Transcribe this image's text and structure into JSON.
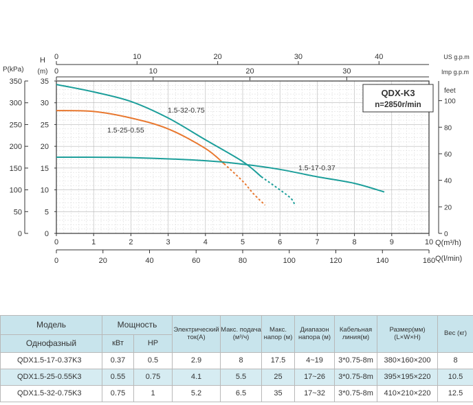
{
  "chart_data": {
    "type": "line",
    "model_title": "QDX-K3",
    "speed": "n=2850r/min",
    "axes": {
      "top_usgpm": {
        "label": "US g.p.m",
        "ticks": [
          "0",
          "10",
          "20",
          "30",
          "40"
        ],
        "max": 46.2
      },
      "top_impgpm": {
        "label": "Imp g.p.m",
        "ticks": [
          "0",
          "10",
          "20",
          "30"
        ],
        "max": 38.5
      },
      "bottom_m3h": {
        "label": "Q(m³/h)",
        "ticks": [
          "0",
          "1",
          "2",
          "3",
          "4",
          "5",
          "6",
          "7",
          "8",
          "9",
          "10"
        ],
        "min": 0,
        "max": 10
      },
      "bottom_lmin": {
        "label": "Q(l/min)",
        "ticks": [
          "0",
          "20",
          "40",
          "60",
          "80",
          "100",
          "120",
          "140",
          "160"
        ],
        "min": 0,
        "max": 160
      },
      "left_kpa": {
        "label": "P(kPa)",
        "ticks": [
          "0",
          "50",
          "100",
          "150",
          "200",
          "250",
          "300",
          "350"
        ],
        "max": 350
      },
      "left_m": {
        "label_h": "H",
        "label_unit": "(m)",
        "ticks": [
          "0",
          "5",
          "10",
          "15",
          "20",
          "25",
          "30",
          "35"
        ],
        "min": 0,
        "max": 35
      },
      "right_feet": {
        "label": "feet",
        "ticks": [
          "0",
          "20",
          "40",
          "60",
          "80",
          "100"
        ],
        "max": 114.8
      }
    },
    "grid": true,
    "series": [
      {
        "name": "1.5-32-0.75",
        "color": "#1b9e9a",
        "x": [
          0,
          1,
          2,
          3,
          4,
          5,
          5.5
        ],
        "y": [
          34.2,
          32.5,
          30.3,
          26.5,
          21.5,
          16.5,
          13.0
        ],
        "dashed_x": [
          5.5,
          6.0,
          6.3,
          6.4
        ],
        "dashed_y": [
          13.0,
          10.0,
          8.0,
          6.5
        ]
      },
      {
        "name": "1.5-25-0.55",
        "color": "#e8772e",
        "x": [
          0,
          1,
          2,
          3,
          4,
          4.5
        ],
        "y": [
          28.2,
          28.0,
          26.5,
          24.0,
          19.5,
          16.0
        ],
        "dashed_x": [
          4.5,
          5.0,
          5.3,
          5.6
        ],
        "dashed_y": [
          16.0,
          12.0,
          9.0,
          6.5
        ]
      },
      {
        "name": "1.5-17-0.37",
        "color": "#1b9e9a",
        "x": [
          0,
          2,
          4,
          5,
          6,
          7,
          8,
          8.8
        ],
        "y": [
          17.5,
          17.4,
          16.7,
          15.9,
          14.7,
          13.0,
          11.5,
          9.5
        ]
      }
    ]
  },
  "table": {
    "headers": {
      "model": "Модель",
      "model_sub": "Однофазный",
      "power": "Мощность",
      "kw": "кВт",
      "hp": "HP",
      "current": "Электрический ток(А)",
      "max_flow": "Макс. подача (м³/ч)",
      "max_head": "Макс. напор (м)",
      "head_range": "Диапазон напора (м)",
      "cable": "Кабельная линия(м)",
      "size": "Размер(мм) (L×W×H)",
      "weight": "Вес (кг)"
    },
    "rows": [
      {
        "model": "QDX1.5-17-0.37K3",
        "kw": "0.37",
        "hp": "0.5",
        "current": "2.9",
        "flow": "8",
        "head": "17.5",
        "range": "4~19",
        "cable": "3*0.75-8m",
        "size": "380×160×200",
        "weight": "8"
      },
      {
        "model": "QDX1.5-25-0.55K3",
        "kw": "0.55",
        "hp": "0.75",
        "current": "4.1",
        "flow": "5.5",
        "head": "25",
        "range": "17~26",
        "cable": "3*0.75-8m",
        "size": "395×195×220",
        "weight": "10.5"
      },
      {
        "model": "QDX1.5-32-0.75K3",
        "kw": "0.75",
        "hp": "1",
        "current": "5.2",
        "flow": "6.5",
        "head": "35",
        "range": "17~32",
        "cable": "3*0.75-8m",
        "size": "410×210×220",
        "weight": "12.5"
      }
    ]
  }
}
